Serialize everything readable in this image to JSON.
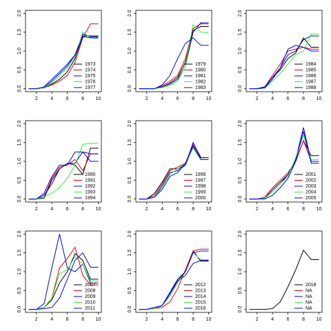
{
  "chart_data": [
    {
      "type": "line",
      "x": [
        1,
        2,
        3,
        4,
        5,
        6,
        7,
        8,
        9,
        10
      ],
      "xlim": [
        0.6,
        10.4
      ],
      "ylim": [
        -0.08,
        2.08
      ],
      "xticks": [
        2,
        4,
        6,
        8,
        10
      ],
      "yticks": [
        {
          "value": 0,
          "label": "0.0"
        },
        0.5,
        {
          "value": 1,
          "label": "1.0"
        },
        1.5,
        {
          "value": 2,
          "label": "2.0"
        }
      ],
      "legend": "bottom right",
      "series": [
        {
          "name": "1973",
          "color": "#000000",
          "values": [
            0,
            0,
            0.02,
            0.12,
            0.25,
            0.45,
            0.8,
            1.4,
            1.4,
            1.4
          ]
        },
        {
          "name": "1974",
          "color": "#dd0000",
          "values": [
            0,
            0,
            0.02,
            0.1,
            0.2,
            0.35,
            0.7,
            1.35,
            1.72,
            1.72
          ]
        },
        {
          "name": "1975",
          "color": "#0000cc",
          "values": [
            0,
            0,
            0.03,
            0.2,
            0.4,
            0.6,
            0.9,
            1.45,
            1.38,
            1.38
          ]
        },
        {
          "name": "1976",
          "color": "#33ee33",
          "values": [
            0,
            0,
            0.02,
            0.15,
            0.35,
            0.55,
            0.85,
            1.5,
            1.35,
            1.33
          ]
        },
        {
          "name": "1977",
          "color": "#0000ff",
          "values": [
            0,
            0,
            0.05,
            0.25,
            0.45,
            0.65,
            0.9,
            1.38,
            1.35,
            1.35
          ]
        }
      ]
    },
    {
      "type": "line",
      "x": [
        1,
        2,
        3,
        4,
        5,
        6,
        7,
        8,
        9,
        10
      ],
      "xlim": [
        0.6,
        10.4
      ],
      "ylim": [
        -0.08,
        2.08
      ],
      "xticks": [
        2,
        4,
        6,
        8,
        10
      ],
      "yticks": [
        {
          "value": 0,
          "label": "0.0"
        },
        0.5,
        {
          "value": 1,
          "label": "1.0"
        },
        1.5,
        {
          "value": 2,
          "label": "2.0"
        }
      ],
      "legend": "bottom right",
      "series": [
        {
          "name": "1979",
          "color": "#000000",
          "values": [
            0,
            0,
            0,
            0.05,
            0.15,
            0.3,
            0.7,
            1.55,
            1.65,
            1.65
          ]
        },
        {
          "name": "1980",
          "color": "#dd0000",
          "values": [
            0,
            0,
            0,
            0.08,
            0.2,
            0.35,
            0.8,
            1.6,
            1.72,
            1.72
          ]
        },
        {
          "name": "1981",
          "color": "#0000cc",
          "values": [
            0,
            0,
            0,
            0.05,
            0.12,
            0.25,
            0.6,
            1.5,
            1.75,
            1.75
          ]
        },
        {
          "name": "1982",
          "color": "#33ee33",
          "values": [
            0,
            0,
            0,
            0.03,
            0.08,
            0.2,
            0.6,
            1.7,
            1.5,
            1.48
          ]
        },
        {
          "name": "1983",
          "color": "#0000ff",
          "values": [
            0,
            0,
            0,
            0.1,
            0.35,
            0.8,
            1.2,
            1.35,
            1.15,
            1.15
          ]
        }
      ]
    },
    {
      "type": "line",
      "x": [
        1,
        2,
        3,
        4,
        5,
        6,
        7,
        8,
        9,
        10
      ],
      "xlim": [
        0.6,
        10.4
      ],
      "ylim": [
        -0.08,
        2.08
      ],
      "xticks": [
        2,
        4,
        6,
        8,
        10
      ],
      "yticks": [
        {
          "value": 0,
          "label": "0.0"
        },
        0.5,
        {
          "value": 1,
          "label": "1.0"
        },
        1.5,
        {
          "value": 2,
          "label": "2.0"
        }
      ],
      "legend": "bottom right",
      "series": [
        {
          "name": "1984",
          "color": "#000000",
          "values": [
            0,
            0,
            0.05,
            0.3,
            0.5,
            0.8,
            0.95,
            1.35,
            1.1,
            1.1
          ]
        },
        {
          "name": "1985",
          "color": "#dd0000",
          "values": [
            0,
            0,
            0.05,
            0.35,
            0.65,
            1.0,
            1.05,
            1.1,
            1.05,
            1.05
          ]
        },
        {
          "name": "1986",
          "color": "#0000cc",
          "values": [
            0,
            0,
            0.05,
            0.3,
            0.55,
            0.9,
            1.0,
            1.3,
            1.4,
            1.4
          ]
        },
        {
          "name": "1987",
          "color": "#33ee33",
          "values": [
            0,
            0,
            0.02,
            0.2,
            0.4,
            0.65,
            0.9,
            1.0,
            1.45,
            1.45
          ]
        },
        {
          "name": "1988",
          "color": "#0000ff",
          "values": [
            0,
            0,
            0.02,
            0.25,
            0.55,
            1.05,
            1.15,
            1.1,
            1.0,
            1.0
          ]
        }
      ]
    },
    {
      "type": "line",
      "x": [
        1,
        2,
        3,
        4,
        5,
        6,
        7,
        8,
        9,
        10
      ],
      "xlim": [
        0.6,
        10.4
      ],
      "ylim": [
        -0.08,
        2.08
      ],
      "xticks": [
        2,
        4,
        6,
        8,
        10
      ],
      "yticks": [
        {
          "value": 0,
          "label": "0.0"
        },
        0.5,
        {
          "value": 1,
          "label": "1.0"
        },
        1.5,
        {
          "value": 2,
          "label": "2.0"
        }
      ],
      "legend": "bottom right",
      "series": [
        {
          "name": "1990",
          "color": "#000000",
          "values": [
            0,
            0,
            0.02,
            0.5,
            0.8,
            0.95,
            0.9,
            0.65,
            1.35,
            1.35
          ]
        },
        {
          "name": "1991",
          "color": "#dd0000",
          "values": [
            0,
            0,
            0.05,
            0.55,
            0.85,
            0.9,
            1.05,
            0.75,
            1.2,
            1.2
          ]
        },
        {
          "name": "1992",
          "color": "#0000cc",
          "values": [
            0,
            0,
            0.1,
            0.4,
            0.8,
            0.95,
            0.95,
            1.25,
            1.2,
            1.2
          ]
        },
        {
          "name": "1993",
          "color": "#33ee33",
          "values": [
            0,
            0,
            0.05,
            0.15,
            0.3,
            0.55,
            0.9,
            1.45,
            1.48,
            1.48
          ]
        },
        {
          "name": "1994",
          "color": "#0000ff",
          "values": [
            0,
            0,
            0.15,
            0.6,
            0.9,
            0.9,
            1.25,
            1.25,
            1.0,
            1.0
          ]
        }
      ]
    },
    {
      "type": "line",
      "x": [
        1,
        2,
        3,
        4,
        5,
        6,
        7,
        8,
        9,
        10
      ],
      "xlim": [
        0.6,
        10.4
      ],
      "ylim": [
        -0.08,
        2.08
      ],
      "xticks": [
        2,
        4,
        6,
        8,
        10
      ],
      "yticks": [
        {
          "value": 0,
          "label": "0.0"
        },
        0.5,
        {
          "value": 1,
          "label": "1.0"
        },
        1.5,
        {
          "value": 2,
          "label": "2.0"
        }
      ],
      "legend": "bottom right",
      "series": [
        {
          "name": "1996",
          "color": "#000000",
          "values": [
            0,
            0,
            0.15,
            0.45,
            0.8,
            0.8,
            0.9,
            1.4,
            1.1,
            1.1
          ]
        },
        {
          "name": "1997",
          "color": "#dd0000",
          "values": [
            0,
            0,
            0.1,
            0.4,
            0.75,
            0.85,
            0.95,
            1.45,
            1.05,
            1.05
          ]
        },
        {
          "name": "1998",
          "color": "#0000cc",
          "values": [
            0,
            0,
            0.05,
            0.35,
            0.7,
            0.75,
            0.9,
            1.5,
            1.1,
            1.1
          ]
        },
        {
          "name": "1999",
          "color": "#33ee33",
          "values": [
            0,
            0,
            0.05,
            0.3,
            0.65,
            0.8,
            0.95,
            1.35,
            1.05,
            1.05
          ]
        },
        {
          "name": "2000",
          "color": "#0000ff",
          "values": [
            0,
            0,
            0.05,
            0.25,
            0.6,
            0.7,
            0.95,
            1.4,
            1.05,
            1.05
          ]
        }
      ]
    },
    {
      "type": "line",
      "x": [
        1,
        2,
        3,
        4,
        5,
        6,
        7,
        8,
        9,
        10
      ],
      "xlim": [
        0.6,
        10.4
      ],
      "ylim": [
        -0.08,
        2.08
      ],
      "xticks": [
        2,
        4,
        6,
        8,
        10
      ],
      "yticks": [
        {
          "value": 0,
          "label": "0.0"
        },
        0.5,
        {
          "value": 1,
          "label": "1.0"
        },
        1.5,
        {
          "value": 2,
          "label": "2.0"
        }
      ],
      "legend": "bottom right",
      "series": [
        {
          "name": "2001",
          "color": "#000000",
          "values": [
            0,
            0,
            0.02,
            0.25,
            0.45,
            0.65,
            1.0,
            1.55,
            1.15,
            1.15
          ]
        },
        {
          "name": "2002",
          "color": "#dd0000",
          "values": [
            0,
            0,
            0.05,
            0.3,
            0.5,
            0.7,
            1.0,
            1.55,
            1.0,
            1.0
          ]
        },
        {
          "name": "2003",
          "color": "#0000cc",
          "values": [
            0,
            0,
            0.02,
            0.2,
            0.4,
            0.65,
            1.05,
            1.9,
            1.0,
            1.0
          ]
        },
        {
          "name": "2004",
          "color": "#33ee33",
          "values": [
            0,
            0,
            0.02,
            0.2,
            0.4,
            0.6,
            1.1,
            1.7,
            1.05,
            1.05
          ]
        },
        {
          "name": "2005",
          "color": "#0000ff",
          "values": [
            0,
            0,
            0,
            0.1,
            0.3,
            0.55,
            1.0,
            1.8,
            0.95,
            0.95
          ]
        }
      ]
    },
    {
      "type": "line",
      "x": [
        1,
        2,
        3,
        4,
        5,
        6,
        7,
        8,
        9,
        10
      ],
      "xlim": [
        0.6,
        10.4
      ],
      "ylim": [
        -0.08,
        2.08
      ],
      "xticks": [
        2,
        4,
        6,
        8,
        10
      ],
      "yticks": [
        {
          "value": 0,
          "label": "0.0"
        },
        0.5,
        {
          "value": 1,
          "label": "1.0"
        },
        1.5,
        {
          "value": 2,
          "label": "2.0"
        }
      ],
      "legend": "bottom right",
      "series": [
        {
          "name": "2007",
          "color": "#000000",
          "values": [
            0,
            0,
            0.05,
            0.25,
            0.7,
            1.0,
            1.48,
            1.3,
            0.8,
            0.8
          ]
        },
        {
          "name": "2008",
          "color": "#dd0000",
          "values": [
            0,
            0,
            0.05,
            0.3,
            1.1,
            1.35,
            1.65,
            0.9,
            0.65,
            0.65
          ]
        },
        {
          "name": "2009",
          "color": "#0000cc",
          "values": [
            0,
            0,
            0.15,
            1.1,
            2.0,
            1.1,
            1.0,
            1.2,
            0.7,
            0.7
          ]
        },
        {
          "name": "2010",
          "color": "#33ee33",
          "values": [
            0,
            0,
            0.05,
            0.3,
            0.95,
            1.05,
            1.4,
            1.2,
            0.75,
            0.75
          ]
        },
        {
          "name": "2011",
          "color": "#0000ff",
          "values": [
            0,
            0,
            0.02,
            0.05,
            0.3,
            0.8,
            1.3,
            1.5,
            1.12,
            1.12
          ]
        }
      ]
    },
    {
      "type": "line",
      "x": [
        1,
        2,
        3,
        4,
        5,
        6,
        7,
        8,
        9,
        10
      ],
      "xlim": [
        0.6,
        10.4
      ],
      "ylim": [
        -0.08,
        2.08
      ],
      "xticks": [
        2,
        4,
        6,
        8,
        10
      ],
      "yticks": [
        {
          "value": 0,
          "label": "0.0"
        },
        0.5,
        {
          "value": 1,
          "label": "1.0"
        },
        1.5,
        {
          "value": 2,
          "label": "2.0"
        }
      ],
      "legend": "bottom right",
      "series": [
        {
          "name": "2012",
          "color": "#000000",
          "values": [
            0,
            0,
            0.02,
            0.1,
            0.45,
            0.8,
            1.0,
            1.55,
            1.28,
            1.28
          ]
        },
        {
          "name": "2013",
          "color": "#dd0000",
          "values": [
            0,
            0,
            0.02,
            0.05,
            0.2,
            0.55,
            1.05,
            1.55,
            1.6,
            1.6
          ]
        },
        {
          "name": "2014",
          "color": "#0000cc",
          "values": [
            0,
            0,
            0.05,
            0.1,
            0.45,
            0.75,
            0.9,
            1.22,
            1.3,
            1.3
          ]
        },
        {
          "name": "2015",
          "color": "#33ee33",
          "values": [
            0,
            0,
            0.02,
            0.1,
            0.35,
            0.7,
            1.0,
            1.5,
            1.32,
            1.32
          ]
        },
        {
          "name": "2016",
          "color": "#0000ff",
          "values": [
            0,
            0,
            0.05,
            0.1,
            0.4,
            0.75,
            1.0,
            1.5,
            1.55,
            1.55
          ]
        }
      ]
    },
    {
      "type": "line",
      "x": [
        1,
        2,
        3,
        4,
        5,
        6,
        7,
        8,
        9,
        10
      ],
      "xlim": [
        0.6,
        10.4
      ],
      "ylim": [
        -0.08,
        2.08
      ],
      "xticks": [
        2,
        4,
        6,
        8,
        10
      ],
      "yticks": [
        {
          "value": 0,
          "label": "0.0"
        },
        0.5,
        {
          "value": 1,
          "label": "1.0"
        },
        1.5,
        {
          "value": 2,
          "label": "2.0"
        }
      ],
      "legend": "bottom right",
      "series": [
        {
          "name": "2018",
          "color": "#000000",
          "values": [
            0,
            0,
            0,
            0.02,
            0.2,
            0.6,
            1.05,
            1.57,
            1.32,
            1.32
          ]
        },
        {
          "name": "NA",
          "color": "#dd0000",
          "values": [
            null,
            null,
            null,
            null,
            null,
            null,
            null,
            null,
            null,
            null
          ]
        },
        {
          "name": "NA",
          "color": "#0000cc",
          "values": [
            null,
            null,
            null,
            null,
            null,
            null,
            null,
            null,
            null,
            null
          ]
        },
        {
          "name": "NA",
          "color": "#33ee33",
          "values": [
            null,
            null,
            null,
            null,
            null,
            null,
            null,
            null,
            null,
            null
          ]
        },
        {
          "name": "NA",
          "color": "#0000ff",
          "values": [
            null,
            null,
            null,
            null,
            null,
            null,
            null,
            null,
            null,
            null
          ]
        }
      ]
    }
  ]
}
